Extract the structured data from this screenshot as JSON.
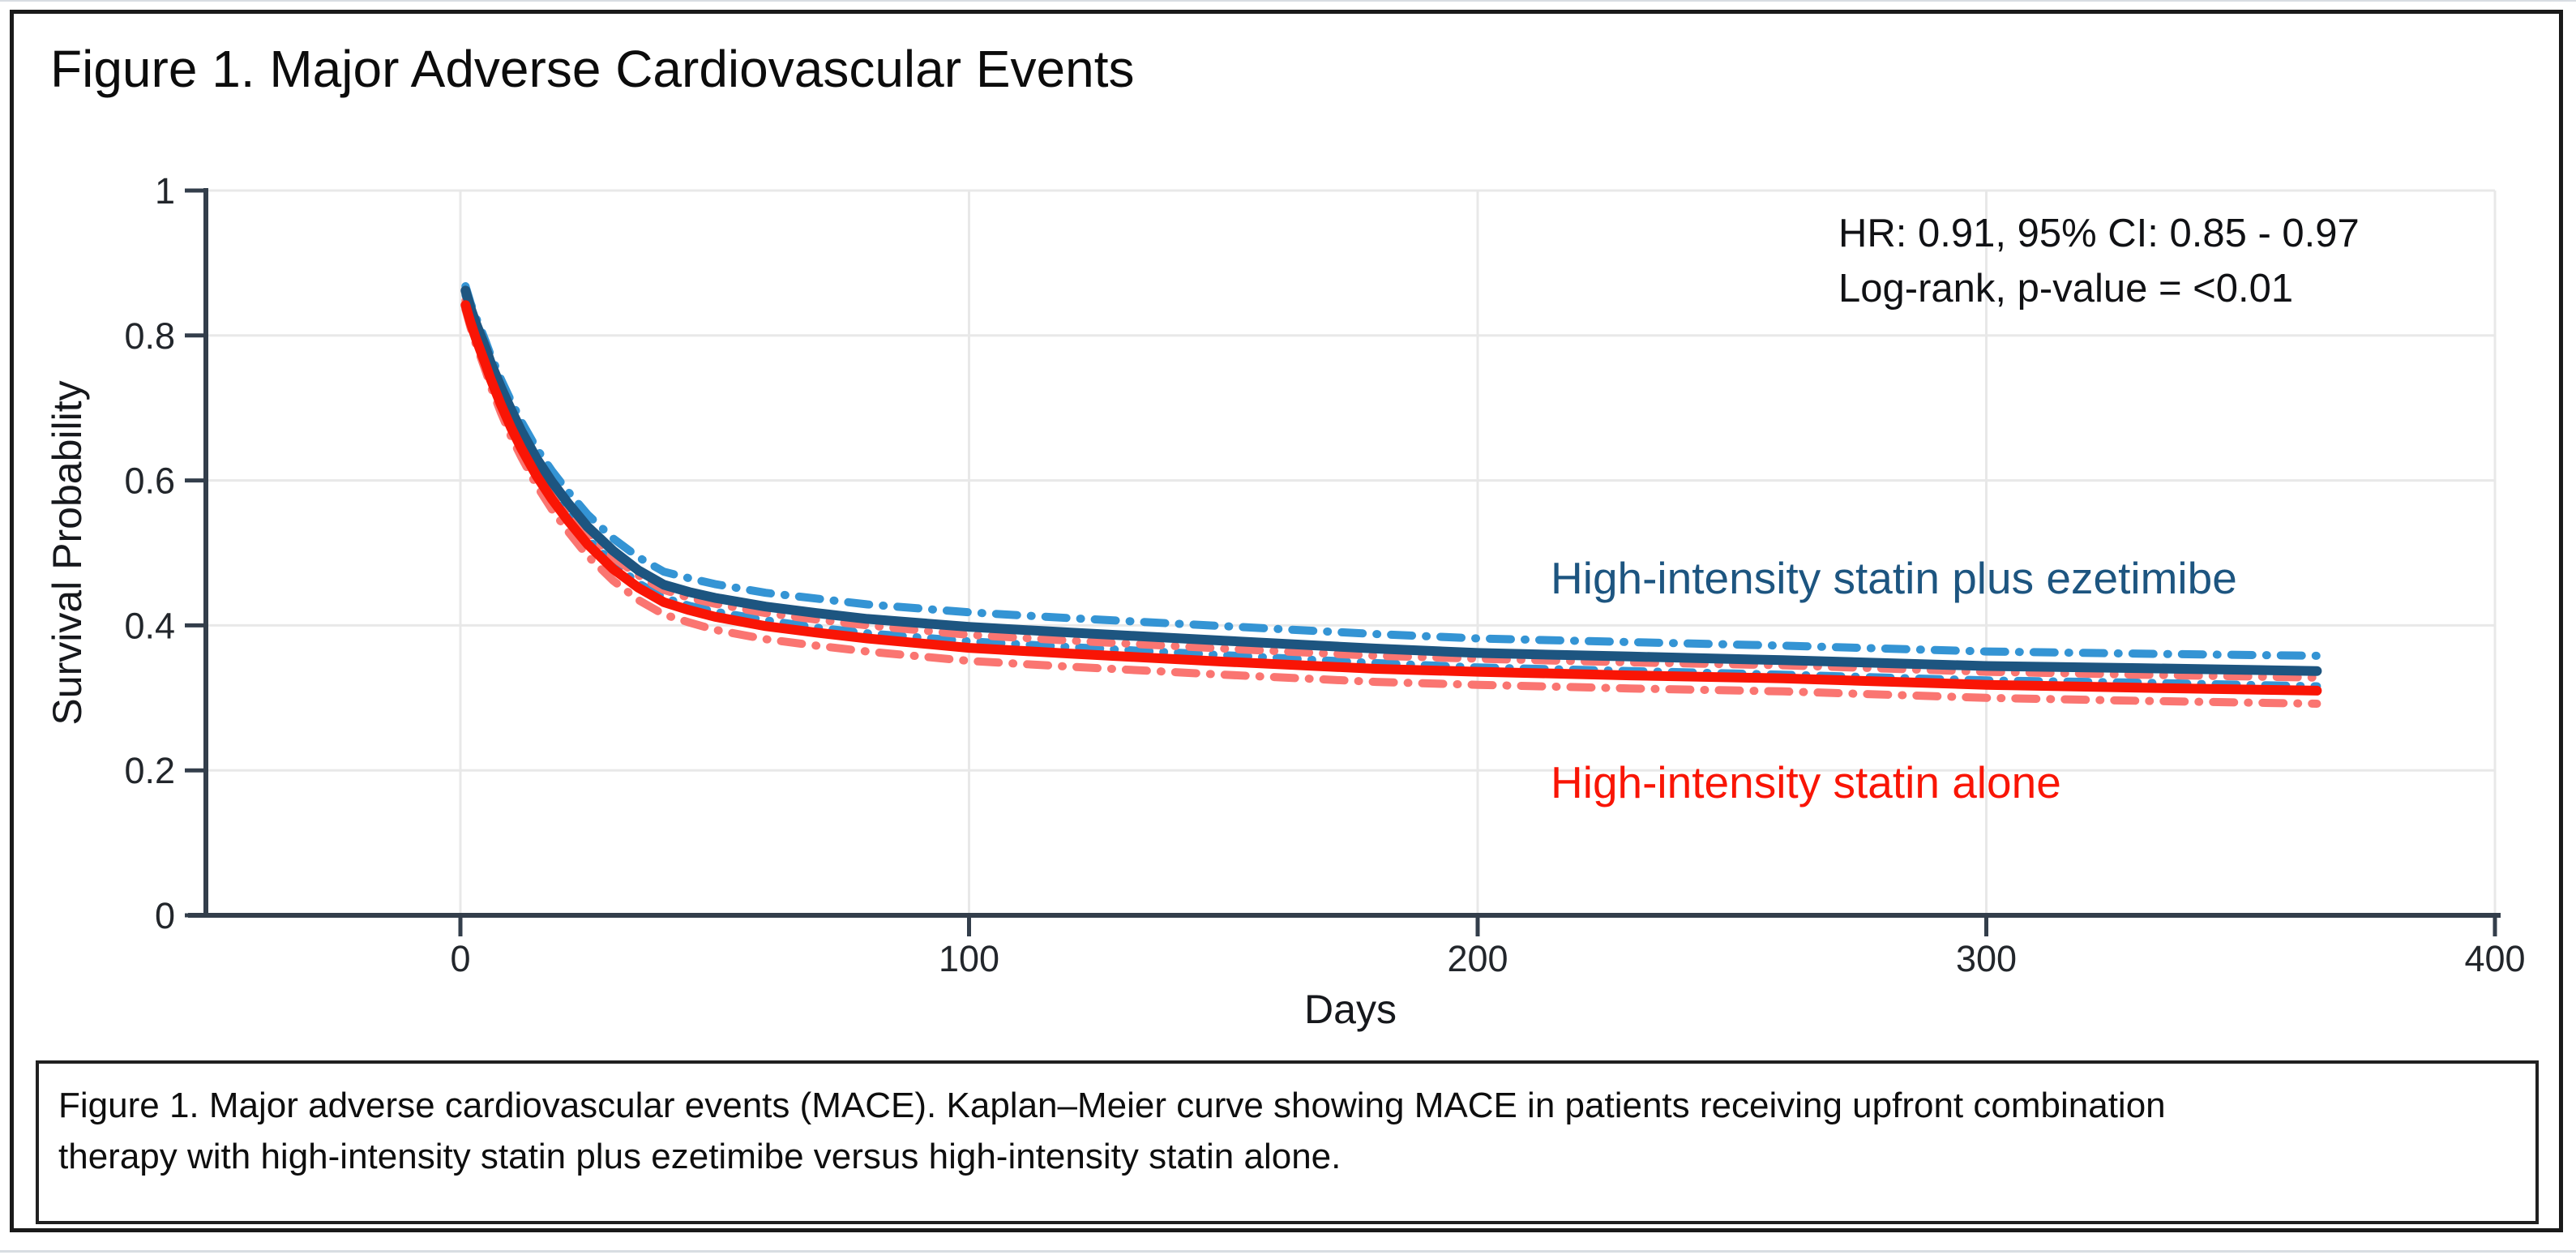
{
  "page": {
    "background": "#ffffff",
    "top_divider_color": "#d8dde2",
    "bottom_divider_color": "#d8dde2"
  },
  "figure": {
    "title": "Figure 1. Major Adverse Cardiovascular Events",
    "border_color": "#1a1a1a",
    "caption": {
      "line1": "Figure 1. Major adverse cardiovascular events (MACE). Kaplan–Meier curve showing MACE in patients receiving upfront combination",
      "line2": "therapy with high-intensity statin plus ezetimibe versus high-intensity statin alone."
    }
  },
  "chart_data": {
    "type": "line",
    "title": "Figure 1. Major Adverse Cardiovascular Events",
    "xlabel": "Days",
    "ylabel": "Survival Probability",
    "xlim": [
      -50,
      400
    ],
    "ylim": [
      0,
      1
    ],
    "xticks": [
      0,
      100,
      200,
      300,
      400
    ],
    "ytick_values": [
      0,
      0.2,
      0.4,
      0.6,
      0.8,
      1
    ],
    "ytick_labels": [
      "0",
      "0.2",
      "0.4",
      "0.6",
      "0.8",
      "1"
    ],
    "grid": true,
    "grid_color": "#e8e8e8",
    "axis_color": "#333e4b",
    "tick_label_color": "#22262b",
    "legend_position": "inline-right",
    "annotation": {
      "line1": "HR: 0.91, 95% CI: 0.85 - 0.97",
      "line2": "Log-rank, p-value = <0.01"
    },
    "x": [
      1,
      2,
      3,
      4,
      5,
      6,
      8,
      10,
      12,
      15,
      18,
      21,
      25,
      30,
      35,
      40,
      45,
      50,
      60,
      70,
      80,
      100,
      120,
      150,
      180,
      200,
      230,
      260,
      300,
      330,
      365
    ],
    "series": [
      {
        "name": "High-intensity statin plus ezetimibe",
        "color": "#1d5580",
        "ci_color": "#3494d4",
        "ci_style": "dash-dot",
        "values": [
          0.862,
          0.838,
          0.818,
          0.8,
          0.782,
          0.762,
          0.728,
          0.697,
          0.668,
          0.63,
          0.598,
          0.57,
          0.536,
          0.503,
          0.476,
          0.456,
          0.446,
          0.438,
          0.426,
          0.417,
          0.409,
          0.398,
          0.39,
          0.379,
          0.368,
          0.362,
          0.357,
          0.352,
          0.344,
          0.341,
          0.337
        ],
        "ci_halfwidth": [
          0.006,
          0.007,
          0.008,
          0.009,
          0.009,
          0.01,
          0.011,
          0.012,
          0.013,
          0.014,
          0.015,
          0.016,
          0.017,
          0.017,
          0.018,
          0.018,
          0.019,
          0.019,
          0.019,
          0.02,
          0.02,
          0.02,
          0.02,
          0.02,
          0.02,
          0.02,
          0.02,
          0.02,
          0.02,
          0.02,
          0.021
        ]
      },
      {
        "name": "High-intensity statin alone",
        "color": "#f91505",
        "ci_color": "#fa7571",
        "ci_style": "dash-dot",
        "values": [
          0.842,
          0.818,
          0.797,
          0.778,
          0.759,
          0.739,
          0.704,
          0.672,
          0.644,
          0.606,
          0.574,
          0.546,
          0.512,
          0.478,
          0.452,
          0.432,
          0.421,
          0.412,
          0.399,
          0.39,
          0.382,
          0.369,
          0.361,
          0.35,
          0.34,
          0.336,
          0.331,
          0.327,
          0.318,
          0.314,
          0.31
        ],
        "ci_halfwidth": [
          0.006,
          0.007,
          0.008,
          0.008,
          0.009,
          0.01,
          0.011,
          0.012,
          0.012,
          0.013,
          0.014,
          0.015,
          0.016,
          0.016,
          0.017,
          0.017,
          0.017,
          0.018,
          0.018,
          0.018,
          0.018,
          0.018,
          0.018,
          0.018,
          0.018,
          0.018,
          0.018,
          0.018,
          0.018,
          0.018,
          0.018
        ]
      }
    ]
  }
}
